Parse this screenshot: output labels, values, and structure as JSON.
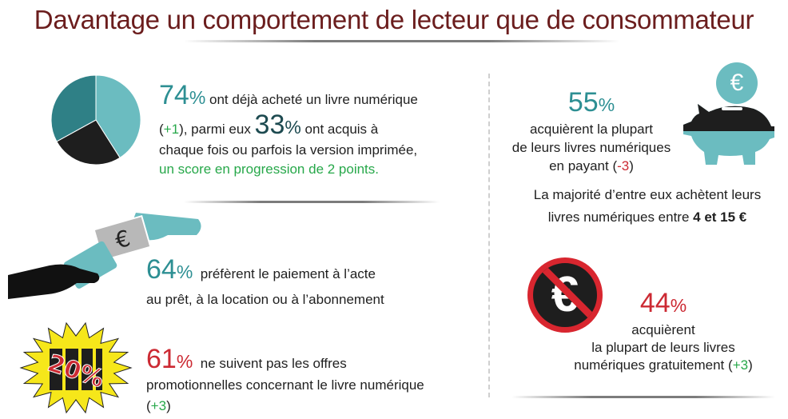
{
  "title": "Davantage un comportement de lecteur que de consommateur",
  "colors": {
    "title": "#6b1d1d",
    "teal": "#2d8f93",
    "dark_teal": "#1d4a50",
    "light_teal": "#6bbcc0",
    "red": "#cc2a33",
    "green": "#27a84a"
  },
  "icons": [
    "pie-chart-icon",
    "piggy-bank-icon",
    "euro-coin-icon",
    "hand-paying-icon",
    "no-euro-icon",
    "promo-20-percent-icon"
  ],
  "stat1": {
    "pct": "74",
    "unit": "%",
    "l1": "ont déjà acheté un livre numérique",
    "change_open": "(",
    "change": "+1",
    "change_close": ")",
    "l2_mid": ", parmi eux ",
    "pct2": "33",
    "unit2": "%",
    "l2_end": " ont acquis à",
    "l3": "chaque fois ou parfois la version imprimée,",
    "l4": "un score en progression de 2 points."
  },
  "stat2": {
    "pct": "55",
    "unit": "%",
    "l1": "acquièrent la plupart",
    "l2": "de leurs livres numériques",
    "l3": "en payant ",
    "change_open": "(",
    "change": "-3",
    "change_close": ")"
  },
  "stat2b": {
    "l1": "La majorité d’entre eux achètent leurs",
    "l2": "livres numériques entre ",
    "l2_bold": "4 et 15 €"
  },
  "stat3": {
    "pct": "64",
    "unit": "%",
    "l1": "préfèrent le paiement à l’acte",
    "l2": "au prêt, à la location ou à l’abonnement",
    "note_symbol": "€"
  },
  "stat4": {
    "pct": "44",
    "unit": "%",
    "l1": "acquièrent",
    "l2": "la plupart de leurs livres",
    "l3": "numériques gratuitement ",
    "change_open": "(",
    "change": "+3",
    "change_close": ")",
    "symbol": "€"
  },
  "stat5": {
    "pct": "61",
    "unit": "%",
    "l1": "ne suivent pas les offres",
    "l2": "promotionnelles concernant le livre numérique",
    "change_open": "(",
    "change": "+3",
    "change_close": ")",
    "promo": "20%"
  },
  "coin_symbol": "€",
  "chart_data": {
    "type": "pie",
    "slices": [
      {
        "label": "ont déjà acheté un livre numérique",
        "value": 41,
        "color": "#6bbcc0"
      },
      {
        "label": "",
        "value": 26,
        "color": "#1e1e1e"
      },
      {
        "label": "",
        "value": 33,
        "color": "#2f8086"
      }
    ]
  }
}
